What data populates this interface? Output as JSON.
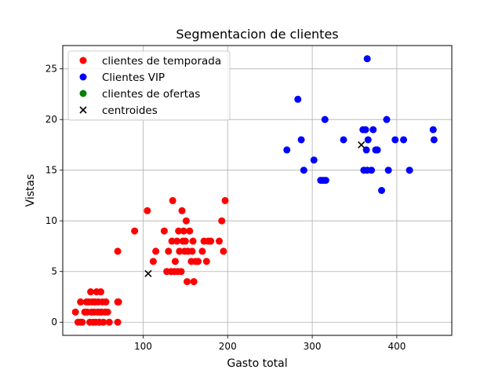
{
  "chart_data": {
    "type": "scatter",
    "title": "Segmentacion de clientes",
    "xlabel": "Gasto total",
    "ylabel": "Vistas",
    "xlim": [
      5,
      465
    ],
    "ylim": [
      -1.3,
      27.3
    ],
    "xticks": [
      100,
      200,
      300,
      400
    ],
    "yticks": [
      0,
      5,
      10,
      15,
      20,
      25
    ],
    "grid": true,
    "legend_position": "upper-left",
    "series": [
      {
        "name": "clientes de temporada",
        "color": "#ff0000",
        "marker": "circle",
        "points": [
          [
            20,
            1
          ],
          [
            23,
            0
          ],
          [
            26,
            0
          ],
          [
            26,
            2
          ],
          [
            28,
            0
          ],
          [
            31,
            1
          ],
          [
            33,
            2
          ],
          [
            34,
            1
          ],
          [
            36,
            2
          ],
          [
            37,
            0
          ],
          [
            38,
            3
          ],
          [
            39,
            1
          ],
          [
            40,
            2
          ],
          [
            41,
            0
          ],
          [
            42,
            1
          ],
          [
            43,
            2
          ],
          [
            44,
            0
          ],
          [
            45,
            3
          ],
          [
            46,
            1
          ],
          [
            47,
            2
          ],
          [
            48,
            0
          ],
          [
            49,
            1
          ],
          [
            50,
            3
          ],
          [
            51,
            1
          ],
          [
            52,
            2
          ],
          [
            53,
            0
          ],
          [
            55,
            1
          ],
          [
            56,
            2
          ],
          [
            58,
            1
          ],
          [
            60,
            0
          ],
          [
            70,
            0
          ],
          [
            70,
            2
          ],
          [
            71,
            2
          ],
          [
            70,
            7
          ],
          [
            90,
            9
          ],
          [
            105,
            11
          ],
          [
            112,
            6
          ],
          [
            115,
            7
          ],
          [
            125,
            9
          ],
          [
            128,
            5
          ],
          [
            130,
            7
          ],
          [
            133,
            5
          ],
          [
            134,
            8
          ],
          [
            135,
            12
          ],
          [
            137,
            5
          ],
          [
            138,
            6
          ],
          [
            140,
            8
          ],
          [
            141,
            5
          ],
          [
            142,
            9
          ],
          [
            143,
            7
          ],
          [
            145,
            5
          ],
          [
            146,
            11
          ],
          [
            147,
            8
          ],
          [
            148,
            9
          ],
          [
            149,
            7
          ],
          [
            150,
            8
          ],
          [
            151,
            10
          ],
          [
            152,
            4
          ],
          [
            153,
            7
          ],
          [
            155,
            9
          ],
          [
            157,
            6
          ],
          [
            158,
            7
          ],
          [
            159,
            8
          ],
          [
            160,
            4
          ],
          [
            162,
            6
          ],
          [
            165,
            6
          ],
          [
            170,
            7
          ],
          [
            172,
            8
          ],
          [
            175,
            6
          ],
          [
            177,
            8
          ],
          [
            180,
            8
          ],
          [
            190,
            8
          ],
          [
            193,
            10
          ],
          [
            195,
            7
          ],
          [
            197,
            12
          ]
        ]
      },
      {
        "name": "Clientes VIP",
        "color": "#0000ff",
        "marker": "circle",
        "points": [
          [
            270,
            17
          ],
          [
            283,
            22
          ],
          [
            287,
            18
          ],
          [
            290,
            15
          ],
          [
            302,
            16
          ],
          [
            310,
            14
          ],
          [
            313,
            14
          ],
          [
            315,
            20
          ],
          [
            316,
            14
          ],
          [
            337,
            18
          ],
          [
            360,
            19
          ],
          [
            361,
            15
          ],
          [
            363,
            19
          ],
          [
            364,
            17
          ],
          [
            365,
            15
          ],
          [
            365,
            26
          ],
          [
            366,
            18
          ],
          [
            370,
            15
          ],
          [
            372,
            19
          ],
          [
            375,
            17
          ],
          [
            377,
            17
          ],
          [
            382,
            13
          ],
          [
            388,
            20
          ],
          [
            390,
            15
          ],
          [
            398,
            18
          ],
          [
            408,
            18
          ],
          [
            415,
            15
          ],
          [
            443,
            19
          ],
          [
            444,
            18
          ]
        ]
      },
      {
        "name": "clientes de ofertas",
        "color": "#008000",
        "marker": "circle",
        "points": []
      },
      {
        "name": "centroides",
        "color": "#000000",
        "marker": "x",
        "points": [
          [
            106,
            4.8
          ],
          [
            358,
            17.5
          ]
        ]
      }
    ]
  }
}
